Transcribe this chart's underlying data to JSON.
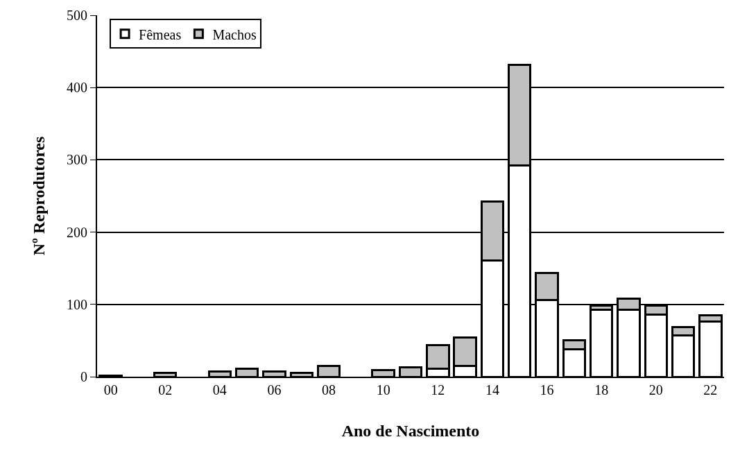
{
  "chart_data": {
    "type": "bar",
    "stacked": true,
    "xlabel": "Ano de Nascimento",
    "ylabel": "Nº Reprodutores",
    "categories": [
      "00",
      null,
      "02",
      null,
      "04",
      null,
      "06",
      null,
      "08",
      null,
      "10",
      null,
      "12",
      null,
      "14",
      null,
      "16",
      null,
      "18",
      null,
      "20",
      null,
      "22"
    ],
    "series": [
      {
        "name": "Fêmeas",
        "color": "#ffffff",
        "values": [
          0,
          0,
          0,
          0,
          0,
          0,
          0,
          0,
          0,
          0,
          0,
          0,
          11,
          15,
          161,
          292,
          106,
          38,
          93,
          93,
          86,
          57,
          76
        ]
      },
      {
        "name": "Machos",
        "color": "#c0c0c0",
        "values": [
          1,
          0,
          5,
          0,
          7,
          11,
          7,
          5,
          15,
          0,
          9,
          13,
          33,
          39,
          81,
          139,
          37,
          12,
          5,
          15,
          12,
          12,
          9
        ]
      }
    ],
    "ylim": [
      0,
      500
    ],
    "yticks": [
      0,
      100,
      200,
      300,
      400,
      500
    ],
    "grid": "y",
    "legend": "top left"
  }
}
